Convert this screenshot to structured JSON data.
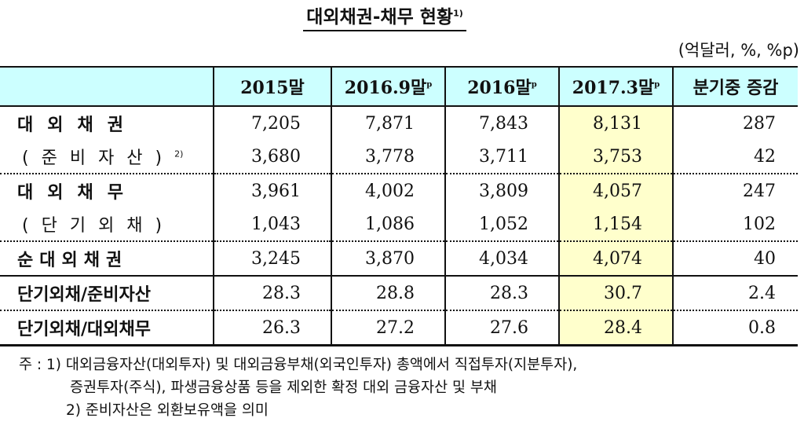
{
  "title": {
    "text": "대외채권-채무 현황",
    "footnote_mark": "1)"
  },
  "unit_label": "(억달러, %, %p)",
  "table": {
    "columns": [
      {
        "label": "",
        "sup": ""
      },
      {
        "label": "2015말",
        "sup": ""
      },
      {
        "label": "2016.9말",
        "sup": "p"
      },
      {
        "label": "2016말",
        "sup": "p"
      },
      {
        "label": "2017.3말",
        "sup": "p"
      },
      {
        "label": "분기중 증감",
        "sup": ""
      }
    ],
    "highlight_column_color": "#ffffcc",
    "header_color": "#ccffff",
    "rows": [
      {
        "label": "대외채권",
        "sup": "",
        "style": "main",
        "values": [
          "7,205",
          "7,871",
          "7,843",
          "8,131",
          "287"
        ]
      },
      {
        "label": "(준비자산)",
        "sup": "2)",
        "style": "sub",
        "values": [
          "3,680",
          "3,778",
          "3,711",
          "3,753",
          "42"
        ]
      },
      {
        "label": "대외채무",
        "sup": "",
        "style": "main",
        "values": [
          "3,961",
          "4,002",
          "3,809",
          "4,057",
          "247"
        ]
      },
      {
        "label": "(단기외채)",
        "sup": "",
        "style": "sub",
        "values": [
          "1,043",
          "1,086",
          "1,052",
          "1,154",
          "102"
        ]
      },
      {
        "label": "순대외채권",
        "sup": "",
        "style": "main",
        "values": [
          "3,245",
          "3,870",
          "4,034",
          "4,074",
          "40"
        ]
      },
      {
        "label": "단기외채/준비자산",
        "sup": "",
        "style": "main",
        "values": [
          "28.3",
          "28.8",
          "28.3",
          "30.7",
          "2.4"
        ]
      },
      {
        "label": "단기외채/대외채무",
        "sup": "",
        "style": "main",
        "values": [
          "26.3",
          "27.2",
          "27.6",
          "28.4",
          "0.8"
        ]
      }
    ]
  },
  "notes": {
    "prefix": "주 :",
    "note1_mark": "1)",
    "note1_line1": "대외금융자산(대외투자) 및 대외금융부채(외국인투자) 총액에서 직접투자(지분투자),",
    "note1_line2": "증권투자(주식), 파생금융상품 등을 제외한 확정 대외 금융자산 및 부채",
    "note2_mark": "2)",
    "note2_text": "준비자산은 외환보유액을 의미"
  }
}
